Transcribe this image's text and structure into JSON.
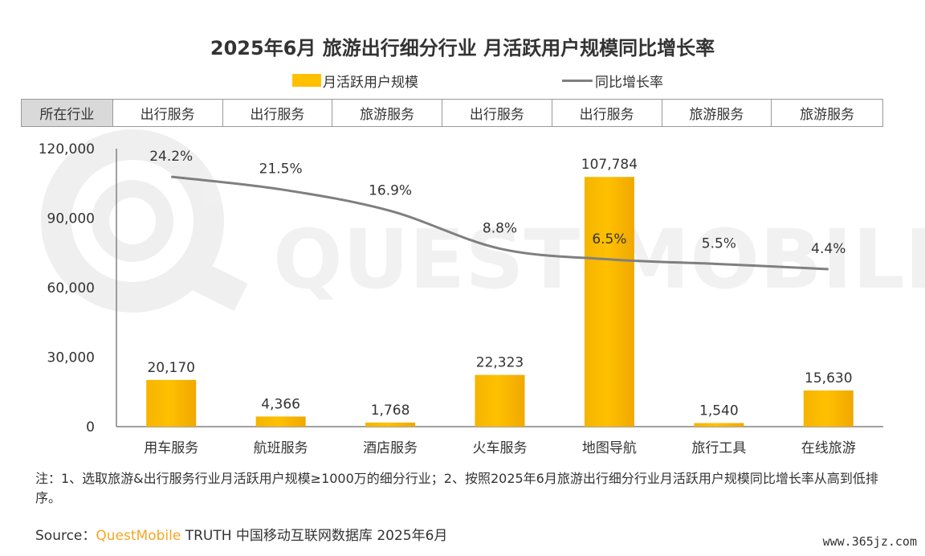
{
  "title": "2025年6月 旅游出行细分行业 月活跃用户规模同比增长率",
  "watermark_text": "QUEST MOBILE",
  "legend": {
    "bar_label": "月活跃用户规模",
    "line_label": "同比增长率"
  },
  "industry_row": {
    "header": "所在行业",
    "cells": [
      "出行服务",
      "出行服务",
      "旅游服务",
      "出行服务",
      "出行服务",
      "旅游服务",
      "旅游服务"
    ]
  },
  "colors": {
    "bar": "#ffc000",
    "line": "#7f7f7f",
    "header_bg": "#d9d9d9"
  },
  "chart_data": {
    "type": "bar",
    "categories": [
      "用车服务",
      "航班服务",
      "酒店服务",
      "火车服务",
      "地图导航",
      "旅行工具",
      "在线旅游"
    ],
    "series": [
      {
        "name": "月活跃用户规模",
        "type": "bar",
        "values": [
          20170,
          4366,
          1768,
          22323,
          107784,
          1540,
          15630
        ],
        "labels": [
          "20,170",
          "4,366",
          "1,768",
          "22,323",
          "107,784",
          "1,540",
          "15,630"
        ]
      },
      {
        "name": "同比增长率",
        "type": "line",
        "values": [
          24.2,
          21.5,
          16.9,
          8.8,
          6.5,
          5.5,
          4.4
        ],
        "labels": [
          "24.2%",
          "21.5%",
          "16.9%",
          "8.8%",
          "6.5%",
          "5.5%",
          "4.4%"
        ]
      }
    ],
    "yticks": [
      "0",
      "30,000",
      "60,000",
      "90,000",
      "120,000"
    ],
    "ylim": [
      0,
      120000
    ],
    "legend_position": "top-center",
    "grid": false
  },
  "footnote": "注：1、选取旅游&出行服务行业月活跃用户规模≥1000万的细分行业；2、按照2025年6月旅游出行细分行业月活跃用户规模同比增长率从高到低排序。",
  "source": {
    "prefix": "Source：",
    "brand": "QuestMobile",
    "suffix": " TRUTH 中国移动互联网数据库 2025年6月"
  },
  "site_mark": "www.365jz.com"
}
